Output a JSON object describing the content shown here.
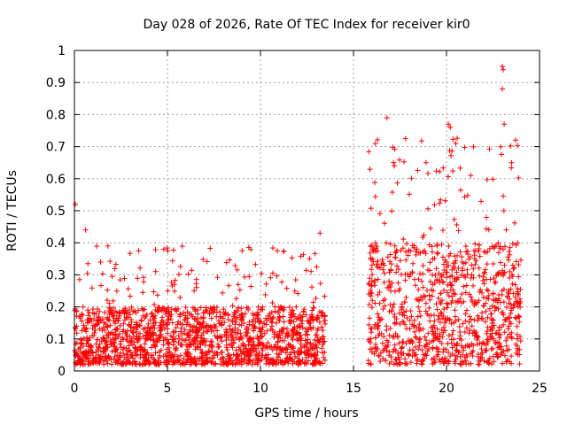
{
  "chart_data": {
    "type": "scatter",
    "title": "Day 028 of 2026, Rate Of TEC Index for receiver kir0",
    "xlabel": "GPS time / hours",
    "ylabel": "ROTI / TECUs",
    "xlim": [
      0,
      25
    ],
    "ylim": [
      0,
      1
    ],
    "xticks": [
      0,
      5,
      10,
      15,
      20,
      25
    ],
    "xtick_labels": [
      "0",
      "5",
      "10",
      "15",
      "20",
      "25"
    ],
    "yticks": [
      0,
      0.1,
      0.2,
      0.3,
      0.4,
      0.5,
      0.6,
      0.7,
      0.8,
      0.9,
      1
    ],
    "ytick_labels": [
      "0",
      "0.1",
      "0.2",
      "0.3",
      "0.4",
      "0.5",
      "0.6",
      "0.7",
      "0.8",
      "0.9",
      "1"
    ],
    "grid": true,
    "marker": "+",
    "color": "#ff0000",
    "series": [
      {
        "name": "ROTI",
        "segments": [
          {
            "x_start": 0.0,
            "x_end": 13.5,
            "typical_low": 0.02,
            "typical_high": 0.2,
            "peak_max": 0.52
          },
          {
            "x_start": 15.8,
            "x_end": 24.0,
            "typical_low": 0.02,
            "typical_high": 0.4,
            "peak_max": 0.95
          }
        ],
        "notable_points": [
          {
            "x": 0.05,
            "y": 0.52
          },
          {
            "x": 0.6,
            "y": 0.44
          },
          {
            "x": 1.8,
            "y": 0.39
          },
          {
            "x": 4.8,
            "y": 0.38
          },
          {
            "x": 8.8,
            "y": 0.27
          },
          {
            "x": 13.2,
            "y": 0.43
          },
          {
            "x": 16.8,
            "y": 0.79
          },
          {
            "x": 17.2,
            "y": 0.64
          },
          {
            "x": 18.9,
            "y": 0.65
          },
          {
            "x": 20.1,
            "y": 0.77
          },
          {
            "x": 20.2,
            "y": 0.76
          },
          {
            "x": 20.5,
            "y": 0.71
          },
          {
            "x": 21.3,
            "y": 0.61
          },
          {
            "x": 23.0,
            "y": 0.95
          },
          {
            "x": 23.05,
            "y": 0.94
          },
          {
            "x": 23.0,
            "y": 0.88
          },
          {
            "x": 23.1,
            "y": 0.77
          },
          {
            "x": 23.5,
            "y": 0.65
          }
        ]
      }
    ]
  }
}
